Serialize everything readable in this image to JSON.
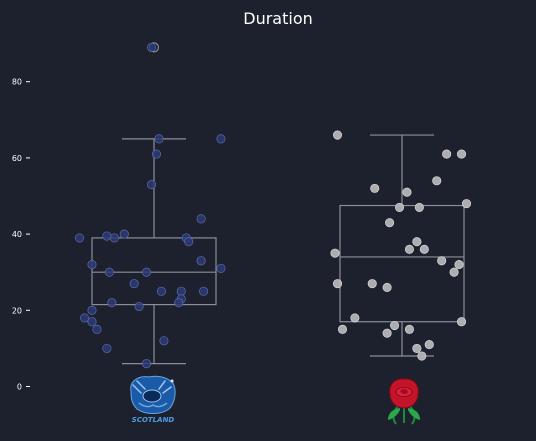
{
  "colors": {
    "background": "#1c212d",
    "box_stroke": "#8a8e98",
    "scotland_point": "#2c3a78",
    "scotland_point_stroke": "#5f6aa8",
    "england_point": "#b4b4b8",
    "england_point_stroke": "#d8d8dc"
  },
  "chart_data": {
    "type": "box",
    "title": "Duration",
    "xlabel": "",
    "ylabel": "",
    "ylim": [
      -2,
      92
    ],
    "yticks": [
      0,
      20,
      40,
      60,
      80
    ],
    "grid": false,
    "legend": "none",
    "categories": [
      "Scotland",
      "England"
    ],
    "category_icons": [
      "scotland-rugby-logo-icon",
      "england-rose-icon"
    ],
    "series": [
      {
        "box": {
          "whisker_low": 6,
          "q1": 21.5,
          "median": 30,
          "q3": 39,
          "whisker_high": 65
        },
        "outliers": [
          89
        ],
        "points": [
          {
            "x": -0.01,
            "y": 89
          },
          {
            "x": 0.27,
            "y": 65
          },
          {
            "x": 0.02,
            "y": 65
          },
          {
            "x": 0.01,
            "y": 61
          },
          {
            "x": -0.01,
            "y": 53
          },
          {
            "x": 0.19,
            "y": 44
          },
          {
            "x": -0.3,
            "y": 39
          },
          {
            "x": -0.16,
            "y": 39
          },
          {
            "x": 0.13,
            "y": 39
          },
          {
            "x": -0.12,
            "y": 40
          },
          {
            "x": -0.19,
            "y": 39.5
          },
          {
            "x": 0.14,
            "y": 38
          },
          {
            "x": -0.25,
            "y": 32
          },
          {
            "x": 0.19,
            "y": 33
          },
          {
            "x": 0.27,
            "y": 31
          },
          {
            "x": -0.18,
            "y": 30
          },
          {
            "x": -0.03,
            "y": 30
          },
          {
            "x": -0.08,
            "y": 27
          },
          {
            "x": 0.03,
            "y": 25
          },
          {
            "x": 0.11,
            "y": 25
          },
          {
            "x": 0.2,
            "y": 25
          },
          {
            "x": 0.11,
            "y": 23
          },
          {
            "x": 0.1,
            "y": 22
          },
          {
            "x": -0.17,
            "y": 22
          },
          {
            "x": -0.06,
            "y": 21
          },
          {
            "x": -0.25,
            "y": 20
          },
          {
            "x": -0.28,
            "y": 18
          },
          {
            "x": -0.25,
            "y": 17
          },
          {
            "x": -0.23,
            "y": 15
          },
          {
            "x": 0.04,
            "y": 12
          },
          {
            "x": -0.19,
            "y": 10
          },
          {
            "x": -0.03,
            "y": 6
          }
        ]
      },
      {
        "box": {
          "whisker_low": 8,
          "q1": 17,
          "median": 34,
          "q3": 47.5,
          "whisker_high": 66
        },
        "outliers": [],
        "points": [
          {
            "x": -0.26,
            "y": 66
          },
          {
            "x": 0.18,
            "y": 61
          },
          {
            "x": 0.24,
            "y": 61
          },
          {
            "x": 0.14,
            "y": 54
          },
          {
            "x": -0.11,
            "y": 52
          },
          {
            "x": 0.02,
            "y": 51
          },
          {
            "x": 0.26,
            "y": 48
          },
          {
            "x": -0.01,
            "y": 47
          },
          {
            "x": 0.07,
            "y": 47
          },
          {
            "x": -0.05,
            "y": 43
          },
          {
            "x": 0.06,
            "y": 38
          },
          {
            "x": 0.03,
            "y": 36
          },
          {
            "x": 0.09,
            "y": 36
          },
          {
            "x": -0.27,
            "y": 35
          },
          {
            "x": 0.16,
            "y": 33
          },
          {
            "x": 0.23,
            "y": 32
          },
          {
            "x": 0.21,
            "y": 30
          },
          {
            "x": -0.26,
            "y": 27
          },
          {
            "x": -0.12,
            "y": 27
          },
          {
            "x": -0.06,
            "y": 26
          },
          {
            "x": -0.19,
            "y": 18
          },
          {
            "x": 0.24,
            "y": 17
          },
          {
            "x": -0.03,
            "y": 16
          },
          {
            "x": 0.03,
            "y": 15
          },
          {
            "x": -0.24,
            "y": 15
          },
          {
            "x": -0.06,
            "y": 14
          },
          {
            "x": 0.11,
            "y": 11
          },
          {
            "x": 0.06,
            "y": 10
          },
          {
            "x": 0.08,
            "y": 8
          }
        ]
      }
    ]
  }
}
